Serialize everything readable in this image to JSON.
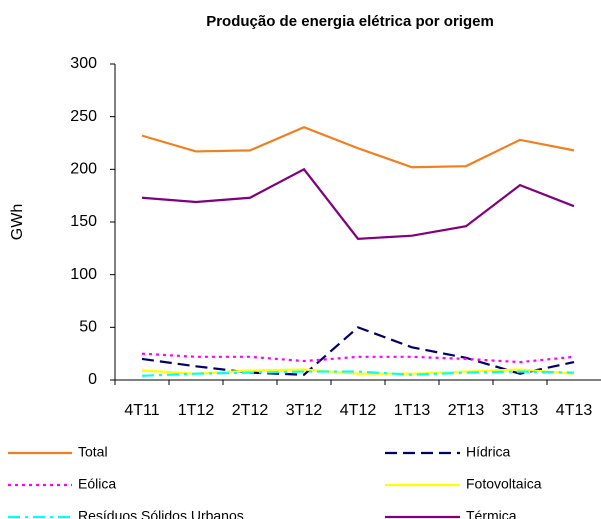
{
  "chart_data": {
    "type": "line",
    "title": "Produção de energia elétrica por origem",
    "y_label": "GWh",
    "categories": [
      "4T11",
      "1T12",
      "2T12",
      "3T12",
      "4T12",
      "1T13",
      "2T13",
      "3T13",
      "4T13"
    ],
    "ylim": [
      0,
      300
    ],
    "yticks": [
      0,
      50,
      100,
      150,
      200,
      250,
      300
    ],
    "series": [
      {
        "name": "Total",
        "color": "#f07f20",
        "line_style": "solid",
        "values": [
          232,
          217,
          218,
          240,
          220,
          202,
          203,
          228,
          218
        ]
      },
      {
        "name": "Hídrica",
        "color": "#000066",
        "line_style": "dashed",
        "values": [
          20,
          13,
          7,
          5,
          50,
          31,
          21,
          6,
          17
        ]
      },
      {
        "name": "Eólica",
        "color": "#ff00ff",
        "line_style": "dotted",
        "values": [
          25,
          22,
          22,
          18,
          22,
          22,
          20,
          17,
          22
        ]
      },
      {
        "name": "Fotovoltaica",
        "color": "#ffff00",
        "line_style": "solid",
        "values": [
          9,
          6,
          9,
          10,
          6,
          6,
          8,
          10,
          6
        ]
      },
      {
        "name": "Resíduos Sólidos Urbanos",
        "color": "#00ffff",
        "line_style": "dashdot",
        "values": [
          4,
          6,
          7,
          8,
          8,
          5,
          7,
          8,
          7
        ]
      },
      {
        "name": "Térmica",
        "color": "#800080",
        "line_style": "solid",
        "values": [
          173,
          169,
          173,
          200,
          134,
          137,
          146,
          185,
          165
        ]
      }
    ]
  }
}
